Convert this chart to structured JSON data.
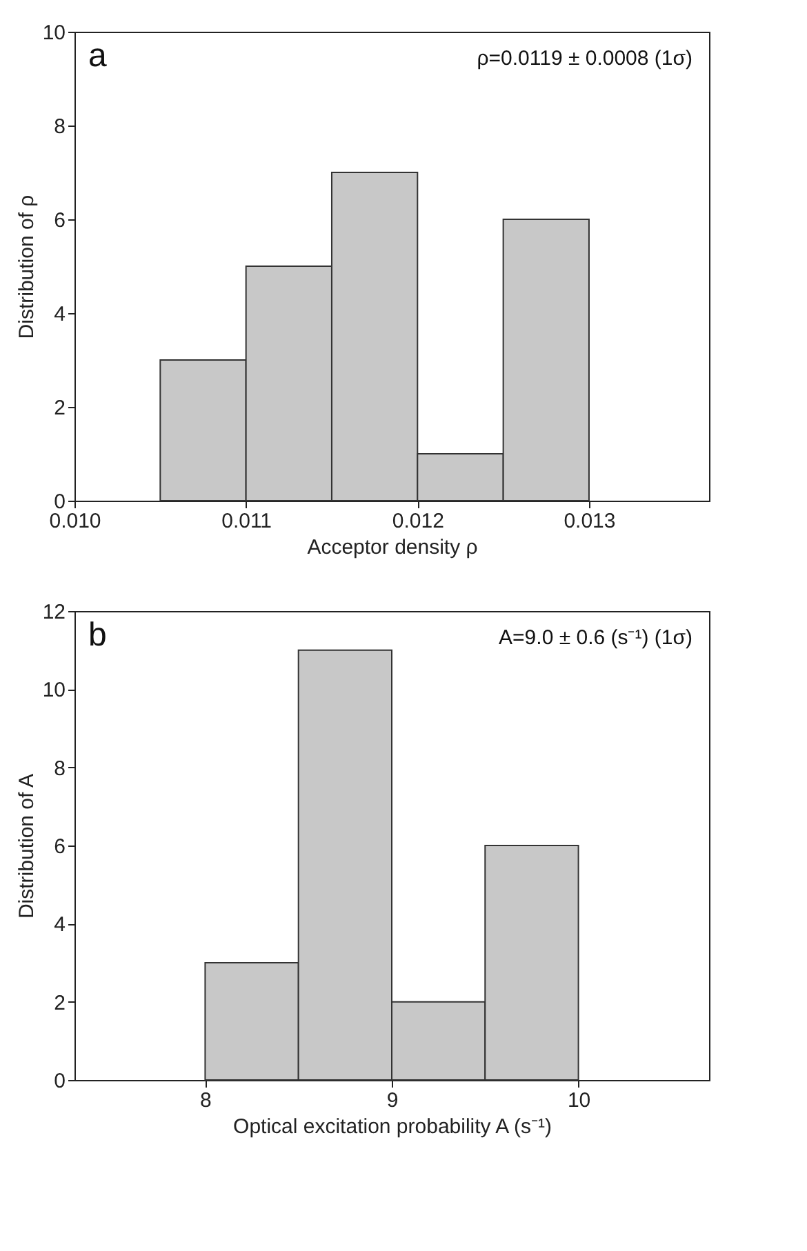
{
  "chart_data": [
    {
      "type": "histogram",
      "bins": [
        0.0105,
        0.011,
        0.0115,
        0.012,
        0.0125,
        0.013
      ],
      "values": [
        3,
        5,
        7,
        1,
        6
      ],
      "color": "#c8c8c8",
      "xlabel": "Acceptor density ρ",
      "ylabel": "Distribution of  ρ",
      "xlim": [
        0.01,
        0.0137
      ],
      "xticks": [
        {
          "value": 0.01,
          "label": "0.010"
        },
        0.011,
        0.012,
        0.013
      ],
      "ylim": [
        0,
        10
      ],
      "yticks": [
        0,
        2,
        4,
        6,
        8,
        10
      ],
      "grid": false,
      "annotations": [
        "a",
        "ρ=0.0119 ± 0.0008 (1σ)"
      ]
    },
    {
      "type": "histogram",
      "bins": [
        8,
        8.5,
        9,
        9.5,
        10
      ],
      "values": [
        3,
        11,
        2,
        6
      ],
      "color": "#c8c8c8",
      "xlabel": "Optical excitation probability A  (s⁻¹)",
      "ylabel": "Distribution of  A",
      "xlim": [
        7.3,
        10.7
      ],
      "xticks": [
        8,
        9,
        10
      ],
      "ylim": [
        0,
        12
      ],
      "yticks": [
        0,
        2,
        4,
        6,
        8,
        10,
        12
      ],
      "grid": false,
      "annotations": [
        "b",
        "A=9.0 ± 0.6 (s⁻¹)    (1σ)"
      ]
    }
  ]
}
